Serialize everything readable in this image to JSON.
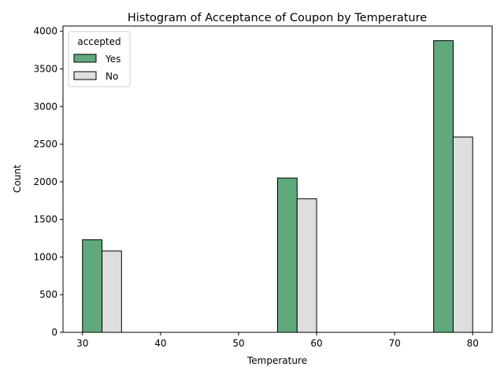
{
  "chart_data": {
    "type": "bar",
    "title": "Histogram of Acceptance of Coupon by Temperature",
    "xlabel": "Temperature",
    "ylabel": "Count",
    "xlim": [
      27.5,
      82.5
    ],
    "ylim": [
      0,
      4070
    ],
    "xticks": [
      30,
      40,
      50,
      60,
      70,
      80
    ],
    "yticks": [
      0,
      500,
      1000,
      1500,
      2000,
      2500,
      3000,
      3500,
      4000
    ],
    "grid": false,
    "legend": {
      "title": "accepted",
      "placement": "top-left"
    },
    "series": [
      {
        "name": "Yes",
        "color": "#5fa97d",
        "bars": [
          {
            "x0": 30.0,
            "x1": 32.5,
            "value": 1230
          },
          {
            "x0": 55.0,
            "x1": 57.5,
            "value": 2050
          },
          {
            "x0": 75.0,
            "x1": 77.5,
            "value": 3875
          }
        ]
      },
      {
        "name": "No",
        "color": "#dedede",
        "bars": [
          {
            "x0": 32.5,
            "x1": 35.0,
            "value": 1080
          },
          {
            "x0": 57.5,
            "x1": 60.0,
            "value": 1775
          },
          {
            "x0": 77.5,
            "x1": 80.0,
            "value": 2595
          }
        ]
      }
    ]
  }
}
